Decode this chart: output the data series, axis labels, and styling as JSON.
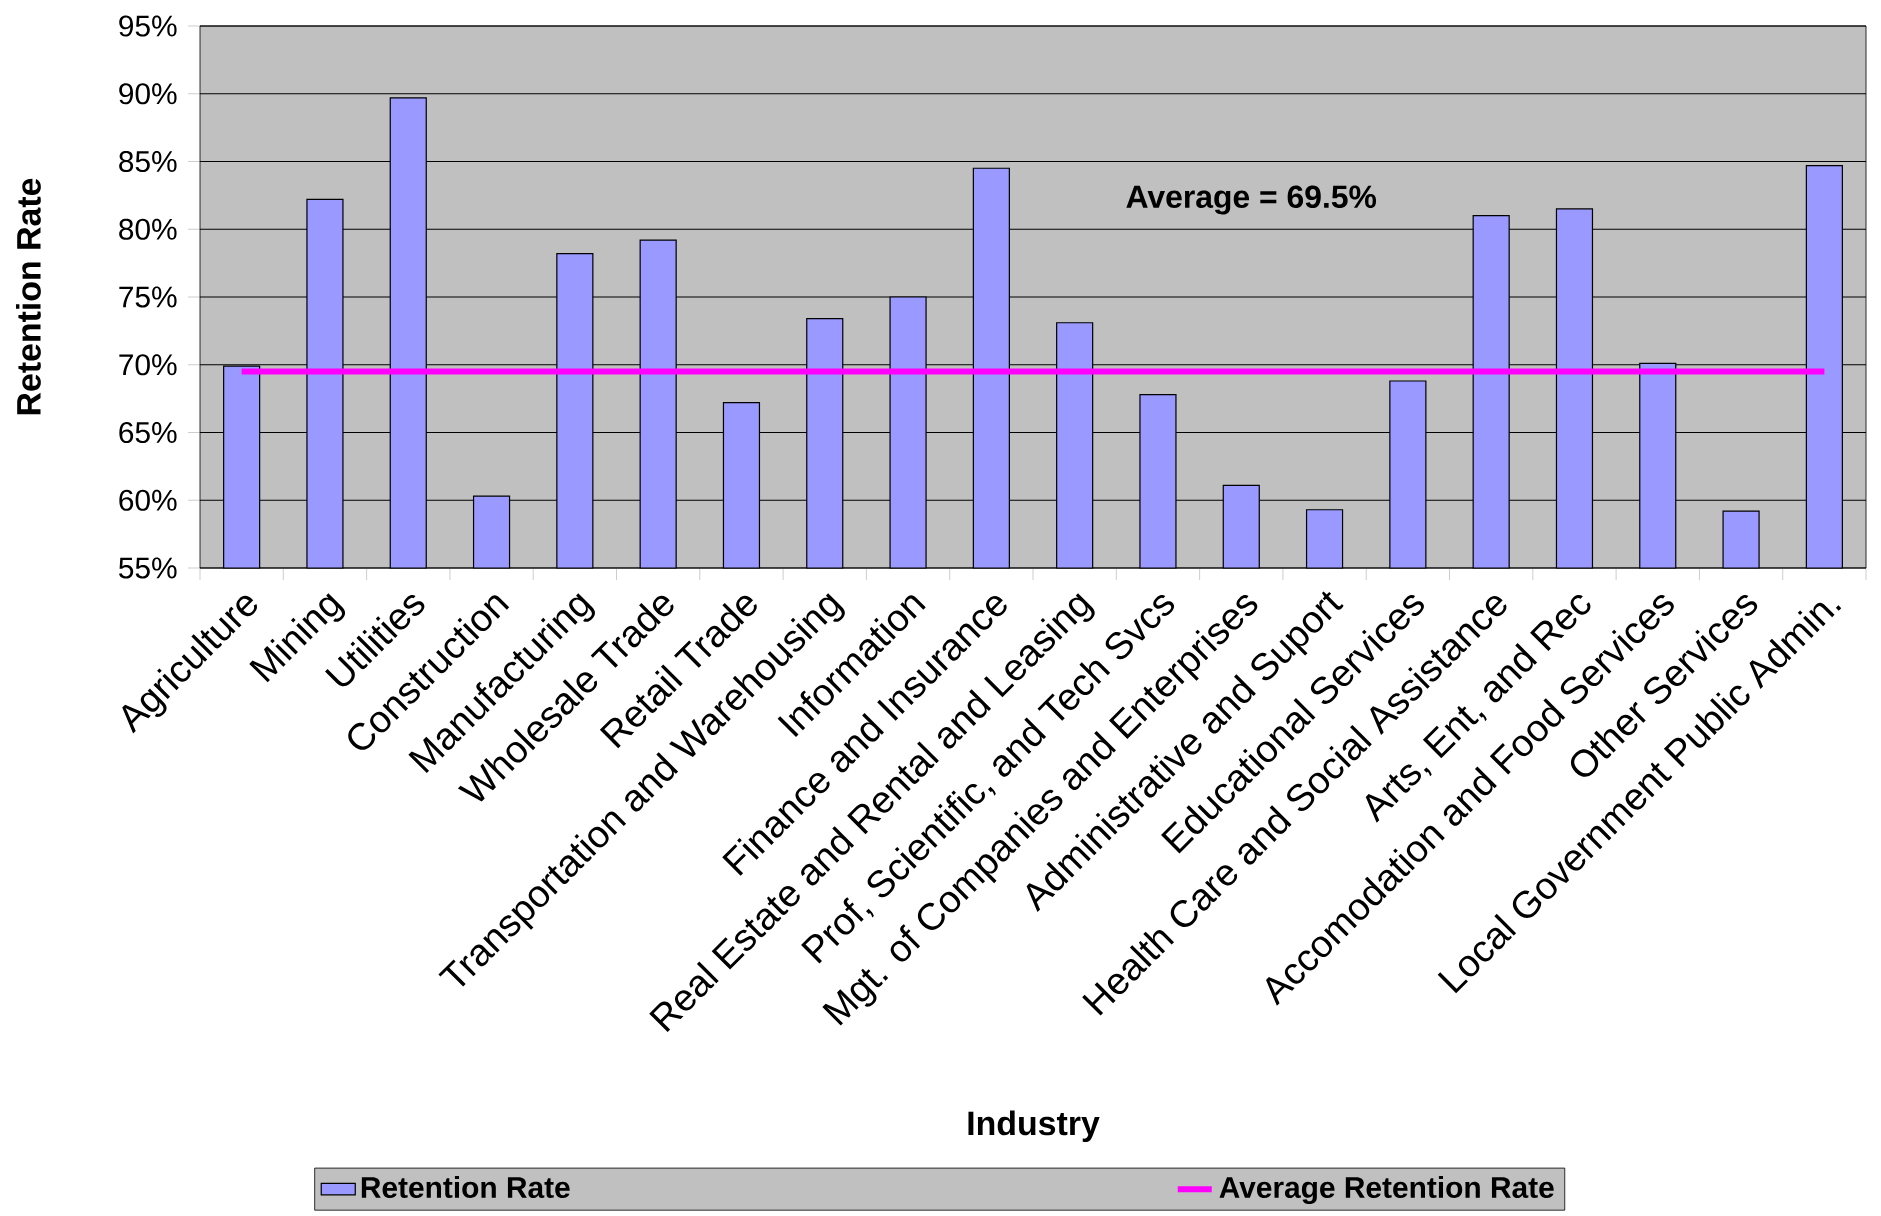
{
  "chart_data": {
    "type": "bar",
    "xlabel": "Industry",
    "ylabel": "Retention Rate",
    "categories": [
      "Agriculture",
      "Mining",
      "Utilities",
      "Construction",
      "Manufacturing",
      "Wholesale Trade",
      "Retail Trade",
      "Transportation and Warehousing",
      "Information",
      "Finance and Insurance",
      "Real Estate and Rental and Leasing",
      "Prof, Scientific, and Tech Svcs",
      "Mgt. of Companies and Enterprises",
      "Administrative and Suport",
      "Educational Services",
      "Health Care and Social Assistance",
      "Arts, Ent, and Rec",
      "Accomodation and Food Services",
      "Other Services",
      "Local Government Public Admin."
    ],
    "series": [
      {
        "name": "Retention Rate",
        "color": "#9999ff",
        "values": [
          69.9,
          82.2,
          89.7,
          60.3,
          78.2,
          79.2,
          67.2,
          73.4,
          75.0,
          84.5,
          73.1,
          67.8,
          61.1,
          59.3,
          68.8,
          81.0,
          81.5,
          70.1,
          59.2,
          84.7
        ]
      },
      {
        "name": "Average Retention Rate",
        "type": "line",
        "color": "#ff00ff",
        "values": [
          69.5,
          69.5,
          69.5,
          69.5,
          69.5,
          69.5,
          69.5,
          69.5,
          69.5,
          69.5,
          69.5,
          69.5,
          69.5,
          69.5,
          69.5,
          69.5,
          69.5,
          69.5,
          69.5,
          69.5
        ]
      }
    ],
    "annotations": [
      "Average = 69.5%"
    ],
    "ylim": [
      55,
      95
    ],
    "yticks": [
      {
        "value": 55,
        "label": "55%"
      },
      {
        "value": 60,
        "label": "60%"
      },
      {
        "value": 65,
        "label": "65%"
      },
      {
        "value": 70,
        "label": "70%"
      },
      {
        "value": 75,
        "label": "75%"
      },
      {
        "value": 80,
        "label": "80%"
      },
      {
        "value": 85,
        "label": "85%"
      },
      {
        "value": 90,
        "label": "90%"
      },
      {
        "value": 95,
        "label": "95%"
      }
    ],
    "grid": "y",
    "legend": "bottom"
  }
}
